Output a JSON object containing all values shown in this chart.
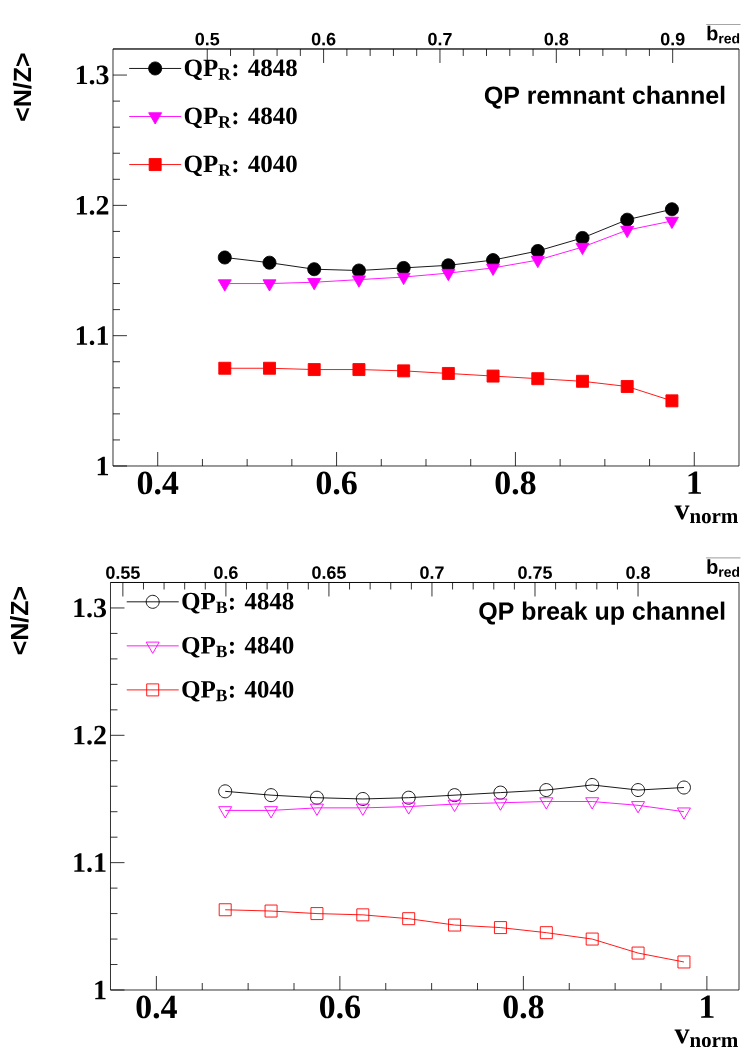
{
  "chart_data": [
    {
      "type": "line",
      "title": "QP remnant channel",
      "xlabel": "v$_{norm}$",
      "ylabel": "<N/Z>",
      "x2label": "b$_{red}$",
      "x": [
        0.475,
        0.525,
        0.575,
        0.625,
        0.675,
        0.725,
        0.775,
        0.825,
        0.875,
        0.925,
        0.975
      ],
      "xlim": [
        0.35,
        1.05
      ],
      "xticks": [
        0.4,
        0.6,
        0.8,
        1
      ],
      "ylim": [
        1,
        1.32
      ],
      "yticks": [
        1,
        1.1,
        1.2,
        1.3
      ],
      "x2lim": [
        0.419,
        0.957
      ],
      "x2ticks": [
        0.5,
        0.6,
        0.7,
        0.8,
        0.9
      ],
      "legend": "top left",
      "line_style": "solid",
      "series": [
        {
          "name": "QP$_{R}$: 4848",
          "color": "#000000",
          "marker": "circle",
          "values": [
            1.16,
            1.156,
            1.151,
            1.15,
            1.152,
            1.154,
            1.158,
            1.165,
            1.175,
            1.189,
            1.197
          ]
        },
        {
          "name": "QP$_{R}$: 4840",
          "color": "#ff00ff",
          "marker": "triangle",
          "values": [
            1.14,
            1.14,
            1.141,
            1.143,
            1.145,
            1.148,
            1.152,
            1.158,
            1.168,
            1.181,
            1.188
          ]
        },
        {
          "name": "QP$_{R}$: 4040",
          "color": "#ff0000",
          "marker": "square",
          "values": [
            1.075,
            1.075,
            1.074,
            1.074,
            1.073,
            1.071,
            1.069,
            1.067,
            1.065,
            1.061,
            1.05
          ]
        }
      ]
    },
    {
      "type": "line",
      "title": "QP break up channel",
      "xlabel": "v$_{norm}$",
      "ylabel": "<N/Z>",
      "x2label": "b$_{red}$",
      "x": [
        0.475,
        0.525,
        0.575,
        0.625,
        0.675,
        0.725,
        0.775,
        0.825,
        0.875,
        0.925,
        0.975
      ],
      "xlim": [
        0.35,
        1.035
      ],
      "xticks": [
        0.4,
        0.6,
        0.8,
        1
      ],
      "ylim": [
        1,
        1.32
      ],
      "yticks": [
        1,
        1.1,
        1.2,
        1.3
      ],
      "x2lim": [
        0.544,
        0.849
      ],
      "x2ticks": [
        0.55,
        0.6,
        0.65,
        0.7,
        0.75,
        0.8
      ],
      "legend": "top left",
      "line_style": "solid",
      "series": [
        {
          "name": "QP$_{B}$: 4848",
          "color": "#000000",
          "marker": "circle",
          "values": [
            1.156,
            1.153,
            1.151,
            1.15,
            1.151,
            1.153,
            1.155,
            1.157,
            1.161,
            1.157,
            1.159
          ]
        },
        {
          "name": "QP$_{B}$: 4840",
          "color": "#ff00ff",
          "marker": "triangle",
          "values": [
            1.141,
            1.141,
            1.143,
            1.143,
            1.144,
            1.146,
            1.147,
            1.148,
            1.148,
            1.145,
            1.14
          ]
        },
        {
          "name": "QP$_{B}$: 4040",
          "color": "#ff0000",
          "marker": "square",
          "values": [
            1.063,
            1.062,
            1.06,
            1.059,
            1.056,
            1.051,
            1.049,
            1.045,
            1.04,
            1.029,
            1.022
          ]
        }
      ]
    }
  ]
}
